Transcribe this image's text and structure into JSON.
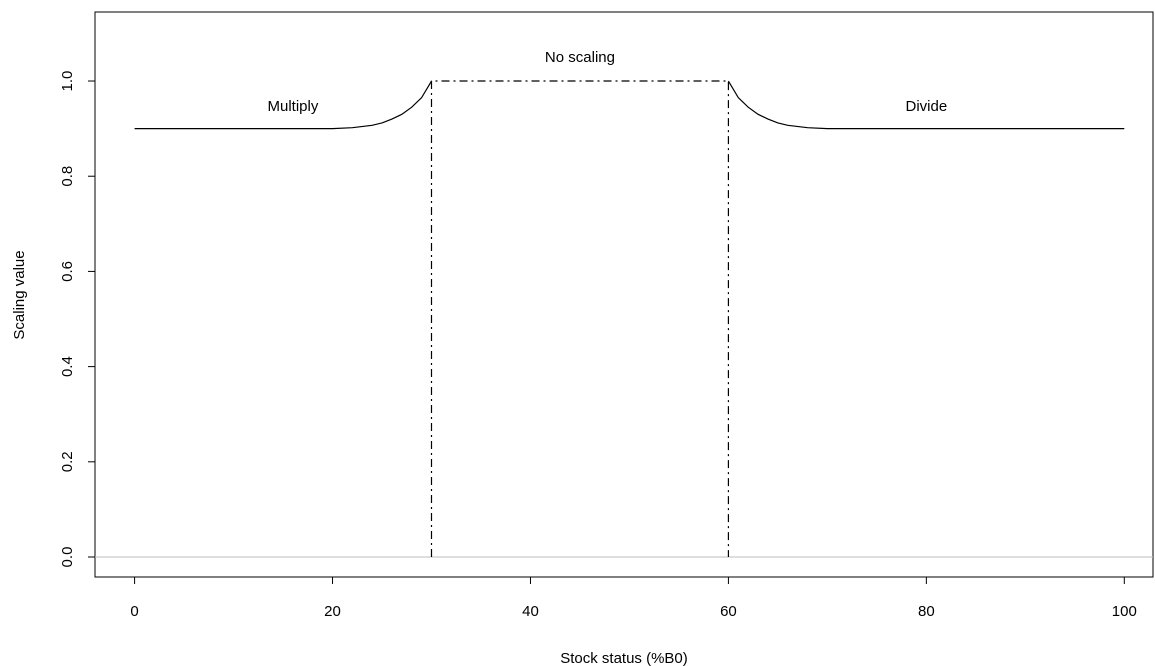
{
  "chart_data": {
    "type": "line",
    "x_label": "Stock status (%B0)",
    "y_label": "Scaling value",
    "xlim": [
      -4,
      102.9
    ],
    "ylim": [
      -0.042,
      1.145
    ],
    "xticks": [
      0,
      20,
      40,
      60,
      80,
      100
    ],
    "yticks": [
      {
        "value": 0,
        "label": "0.0"
      },
      0.2,
      0.4,
      0.6,
      0.8,
      {
        "value": 1,
        "label": "1.0"
      }
    ],
    "hline": {
      "y": 0,
      "color": "#bebebe"
    },
    "series": [
      {
        "color": "#000000",
        "dash": "solid",
        "x": [
          0,
          20,
          22,
          24,
          25,
          26,
          27,
          28,
          29,
          30
        ],
        "values": [
          0.9,
          0.9,
          0.902,
          0.907,
          0.912,
          0.92,
          0.93,
          0.945,
          0.965,
          1.0
        ]
      },
      {
        "color": "#000000",
        "dash": "dashdot",
        "x": [
          30,
          30,
          60,
          60
        ],
        "values": [
          0,
          1.0,
          1.0,
          0
        ]
      },
      {
        "color": "#000000",
        "dash": "solid",
        "x": [
          60,
          61,
          62,
          63,
          64,
          65,
          66,
          68,
          70,
          100
        ],
        "values": [
          1.0,
          0.965,
          0.945,
          0.93,
          0.92,
          0.912,
          0.907,
          0.902,
          0.9,
          0.9
        ]
      }
    ],
    "annotations": [
      {
        "text": "Multiply",
        "x": 16,
        "y": 0.945
      },
      {
        "text": "No scaling",
        "x": 45,
        "y": 1.048
      },
      {
        "text": "Divide",
        "x": 80,
        "y": 0.945
      }
    ]
  }
}
